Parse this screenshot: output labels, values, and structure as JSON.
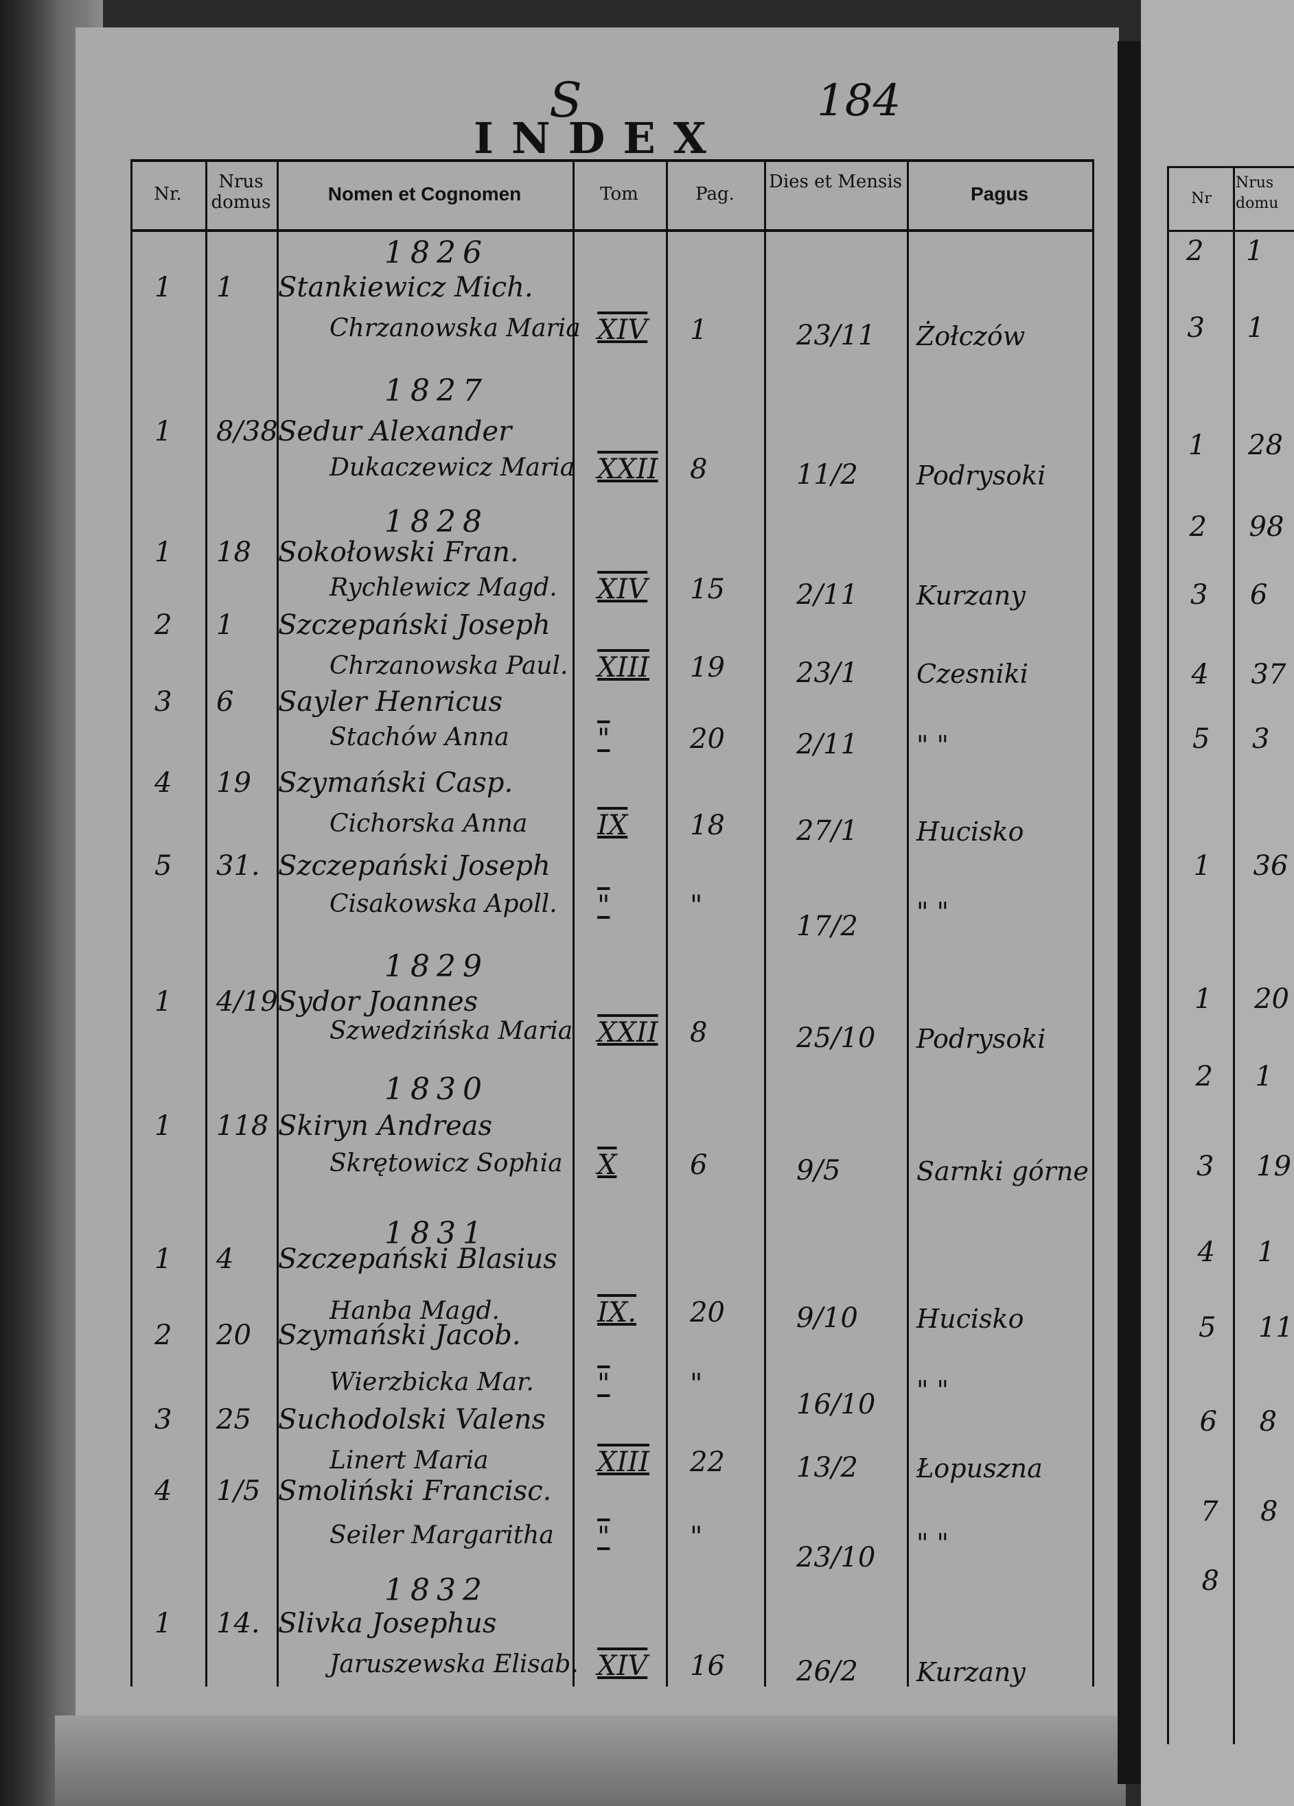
{
  "page": {
    "letter": "S",
    "page_number": "184",
    "title": "INDEX"
  },
  "columns": [
    "Nr.",
    "Nrus domus",
    "Nomen et Cognomen",
    "Tom",
    "Pag.",
    "Dies et Mensis",
    "Pagus"
  ],
  "entries": [
    {
      "year": "1826",
      "nr": "1",
      "domus": "1",
      "name1": "Stankiewicz Mich.",
      "name2": "Chrzanowska Maria",
      "tom": "XIV",
      "pag": "1",
      "dies": "23/11",
      "pagus": "Żołczów"
    },
    {
      "year": "1827",
      "nr": "1",
      "domus": "8/38",
      "name1": "Sedur Alexander",
      "name2": "Dukaczewicz Maria",
      "tom": "XXII",
      "pag": "8",
      "dies": "11/2",
      "pagus": "Podrysoki"
    },
    {
      "year": "1828",
      "nr": "1",
      "domus": "18",
      "name1": "Sokołowski Fran.",
      "name2": "Rychlewicz Magd.",
      "tom": "XIV",
      "pag": "15",
      "dies": "2/11",
      "pagus": "Kurzany"
    },
    {
      "year": "",
      "nr": "2",
      "domus": "1",
      "name1": "Szczepański Joseph",
      "name2": "Chrzanowska Paul.",
      "tom": "XIII",
      "pag": "19",
      "dies": "23/1",
      "pagus": "Czesniki"
    },
    {
      "year": "",
      "nr": "3",
      "domus": "6",
      "name1": "Sayler Henricus",
      "name2": "Stachów Anna",
      "tom": "\"",
      "pag": "20",
      "dies": "2/11",
      "pagus": "\"    \""
    },
    {
      "year": "",
      "nr": "4",
      "domus": "19",
      "name1": "Szymański Casp.",
      "name2": "Cichorska Anna",
      "tom": "IX",
      "pag": "18",
      "dies": "27/1",
      "pagus": "Hucisko"
    },
    {
      "year": "",
      "nr": "5",
      "domus": "31.",
      "name1": "Szczepański Joseph",
      "name2": "Cisakowska Apoll.",
      "tom": "\"",
      "pag": "\"",
      "dies": "17/2",
      "pagus": "\"    \""
    },
    {
      "year": "1829",
      "nr": "1",
      "domus": "4/19",
      "name1": "Sydor Joannes",
      "name2": "Szwedzińska Maria",
      "tom": "XXII",
      "pag": "8",
      "dies": "25/10",
      "pagus": "Podrysoki"
    },
    {
      "year": "1830",
      "nr": "1",
      "domus": "118",
      "name1": "Skiryn Andreas",
      "name2": "Skrętowicz Sophia",
      "tom": "X",
      "pag": "6",
      "dies": "9/5",
      "pagus": "Sarnki górne"
    },
    {
      "year": "1831",
      "nr": "1",
      "domus": "4",
      "name1": "Szczepański Blasius",
      "name2": "Hanba Magd.",
      "tom": "IX.",
      "pag": "20",
      "dies": "9/10",
      "pagus": "Hucisko"
    },
    {
      "year": "",
      "nr": "2",
      "domus": "20",
      "name1": "Szymański Jacob.",
      "name2": "Wierzbicka Mar.",
      "tom": "\"",
      "pag": "\"",
      "dies": "16/10",
      "pagus": "\"    \""
    },
    {
      "year": "",
      "nr": "3",
      "domus": "25",
      "name1": "Suchodolski Valens",
      "name2": "Linert Maria",
      "tom": "XIII",
      "pag": "22",
      "dies": "13/2",
      "pagus": "Łopuszna"
    },
    {
      "year": "",
      "nr": "4",
      "domus": "1/5",
      "name1": "Smoliński Francisc.",
      "name2": "Seiler Margaritha",
      "tom": "\"",
      "pag": "\"",
      "dies": "23/10",
      "pagus": "\"    \""
    },
    {
      "year": "1832",
      "nr": "1",
      "domus": "14.",
      "name1": "Slivka Josephus",
      "name2": "Jaruszewska Elisab.",
      "tom": "XIV",
      "pag": "16",
      "dies": "26/2",
      "pagus": "Kurzany"
    }
  ],
  "right_page": {
    "columns": [
      "Nr",
      "Nrus domu"
    ],
    "nr": [
      "2",
      "3",
      "1",
      "2",
      "3",
      "4",
      "5",
      "1",
      "1",
      "2",
      "3",
      "4",
      "5",
      "6",
      "7",
      "8"
    ],
    "domus": [
      "1",
      "1",
      "28",
      "98",
      "6",
      "37",
      "3",
      "36",
      "20",
      "1",
      "19",
      "1",
      "11",
      "8",
      "8",
      ""
    ]
  }
}
